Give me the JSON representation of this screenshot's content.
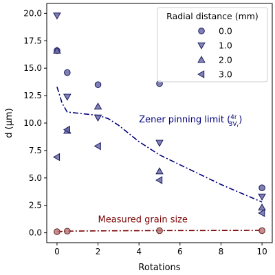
{
  "chart_data": {
    "type": "scatter",
    "title": "",
    "xlabel": "Rotations",
    "ylabel": "d (μm)",
    "xlim": [
      -0.5,
      10.5
    ],
    "ylim": [
      -0.9,
      20.9
    ],
    "xticks": [
      0,
      2,
      4,
      6,
      8,
      10
    ],
    "xtick_labels": [
      "0",
      "2",
      "4",
      "6",
      "8",
      "10"
    ],
    "yticks": [
      0,
      2.5,
      5,
      7.5,
      10,
      12.5,
      15,
      17.5,
      20
    ],
    "ytick_labels": [
      "0.0",
      "2.5",
      "5.0",
      "7.5",
      "10.0",
      "12.5",
      "15.0",
      "17.5",
      "20.0"
    ],
    "grid": false,
    "legend": {
      "title": "Radial distance (mm)",
      "placement": "top-right",
      "entries": [
        "0.0",
        "1.0",
        "2.0",
        "3.0"
      ]
    },
    "colors": {
      "points_fill": "#6a6aa8",
      "points_edge": "#1a1a5e",
      "grain_fill": "#c07a7a",
      "grain_edge": "#5a2020",
      "zener_line": "#00007a",
      "grain_line": "#7a0000"
    },
    "series": [
      {
        "name": "0.0",
        "marker": "circle",
        "x": [
          0,
          0.5,
          2,
          5,
          10
        ],
        "y": [
          16.6,
          14.6,
          13.5,
          13.6,
          4.1
        ]
      },
      {
        "name": "1.0",
        "marker": "triangle-down",
        "x": [
          0,
          0.5,
          2,
          5,
          10
        ],
        "y": [
          19.8,
          12.4,
          10.5,
          8.2,
          3.3
        ]
      },
      {
        "name": "2.0",
        "marker": "triangle-up",
        "x": [
          0,
          0.5,
          2,
          5,
          10
        ],
        "y": [
          16.6,
          9.3,
          11.5,
          5.6,
          2.3
        ]
      },
      {
        "name": "3.0",
        "marker": "triangle-left",
        "x": [
          0,
          0.5,
          2,
          5,
          10
        ],
        "y": [
          6.9,
          9.4,
          7.9,
          4.8,
          1.8
        ]
      }
    ],
    "grain_size_points": {
      "x": [
        0,
        0.5,
        5,
        10
      ],
      "y": [
        0.1,
        0.15,
        0.2,
        0.2
      ]
    },
    "zener_curve": {
      "x": [
        0,
        0.25,
        0.5,
        1,
        1.5,
        2,
        2.5,
        3,
        4,
        5,
        6,
        7,
        8,
        9,
        10
      ],
      "y": [
        13.3,
        11.8,
        11.0,
        10.9,
        10.8,
        10.7,
        10.4,
        9.8,
        8.3,
        7.1,
        6.2,
        5.3,
        4.4,
        3.6,
        2.8
      ]
    },
    "grain_curve": {
      "x": [
        0,
        0.5,
        2,
        5,
        10
      ],
      "y": [
        0.1,
        0.15,
        0.18,
        0.2,
        0.22
      ]
    },
    "annotations": [
      {
        "id": "zener",
        "text": "Zener pinning limit (",
        "frac_num": "4r",
        "frac_den": "3V",
        "frac_den_sub": "r",
        "suffix": ")",
        "x": 4.0,
        "y": 10.3,
        "color": "#00007a"
      },
      {
        "id": "grain",
        "text": "Measured grain size",
        "x": 2.0,
        "y": 1.2,
        "color": "#7a0000"
      }
    ]
  }
}
